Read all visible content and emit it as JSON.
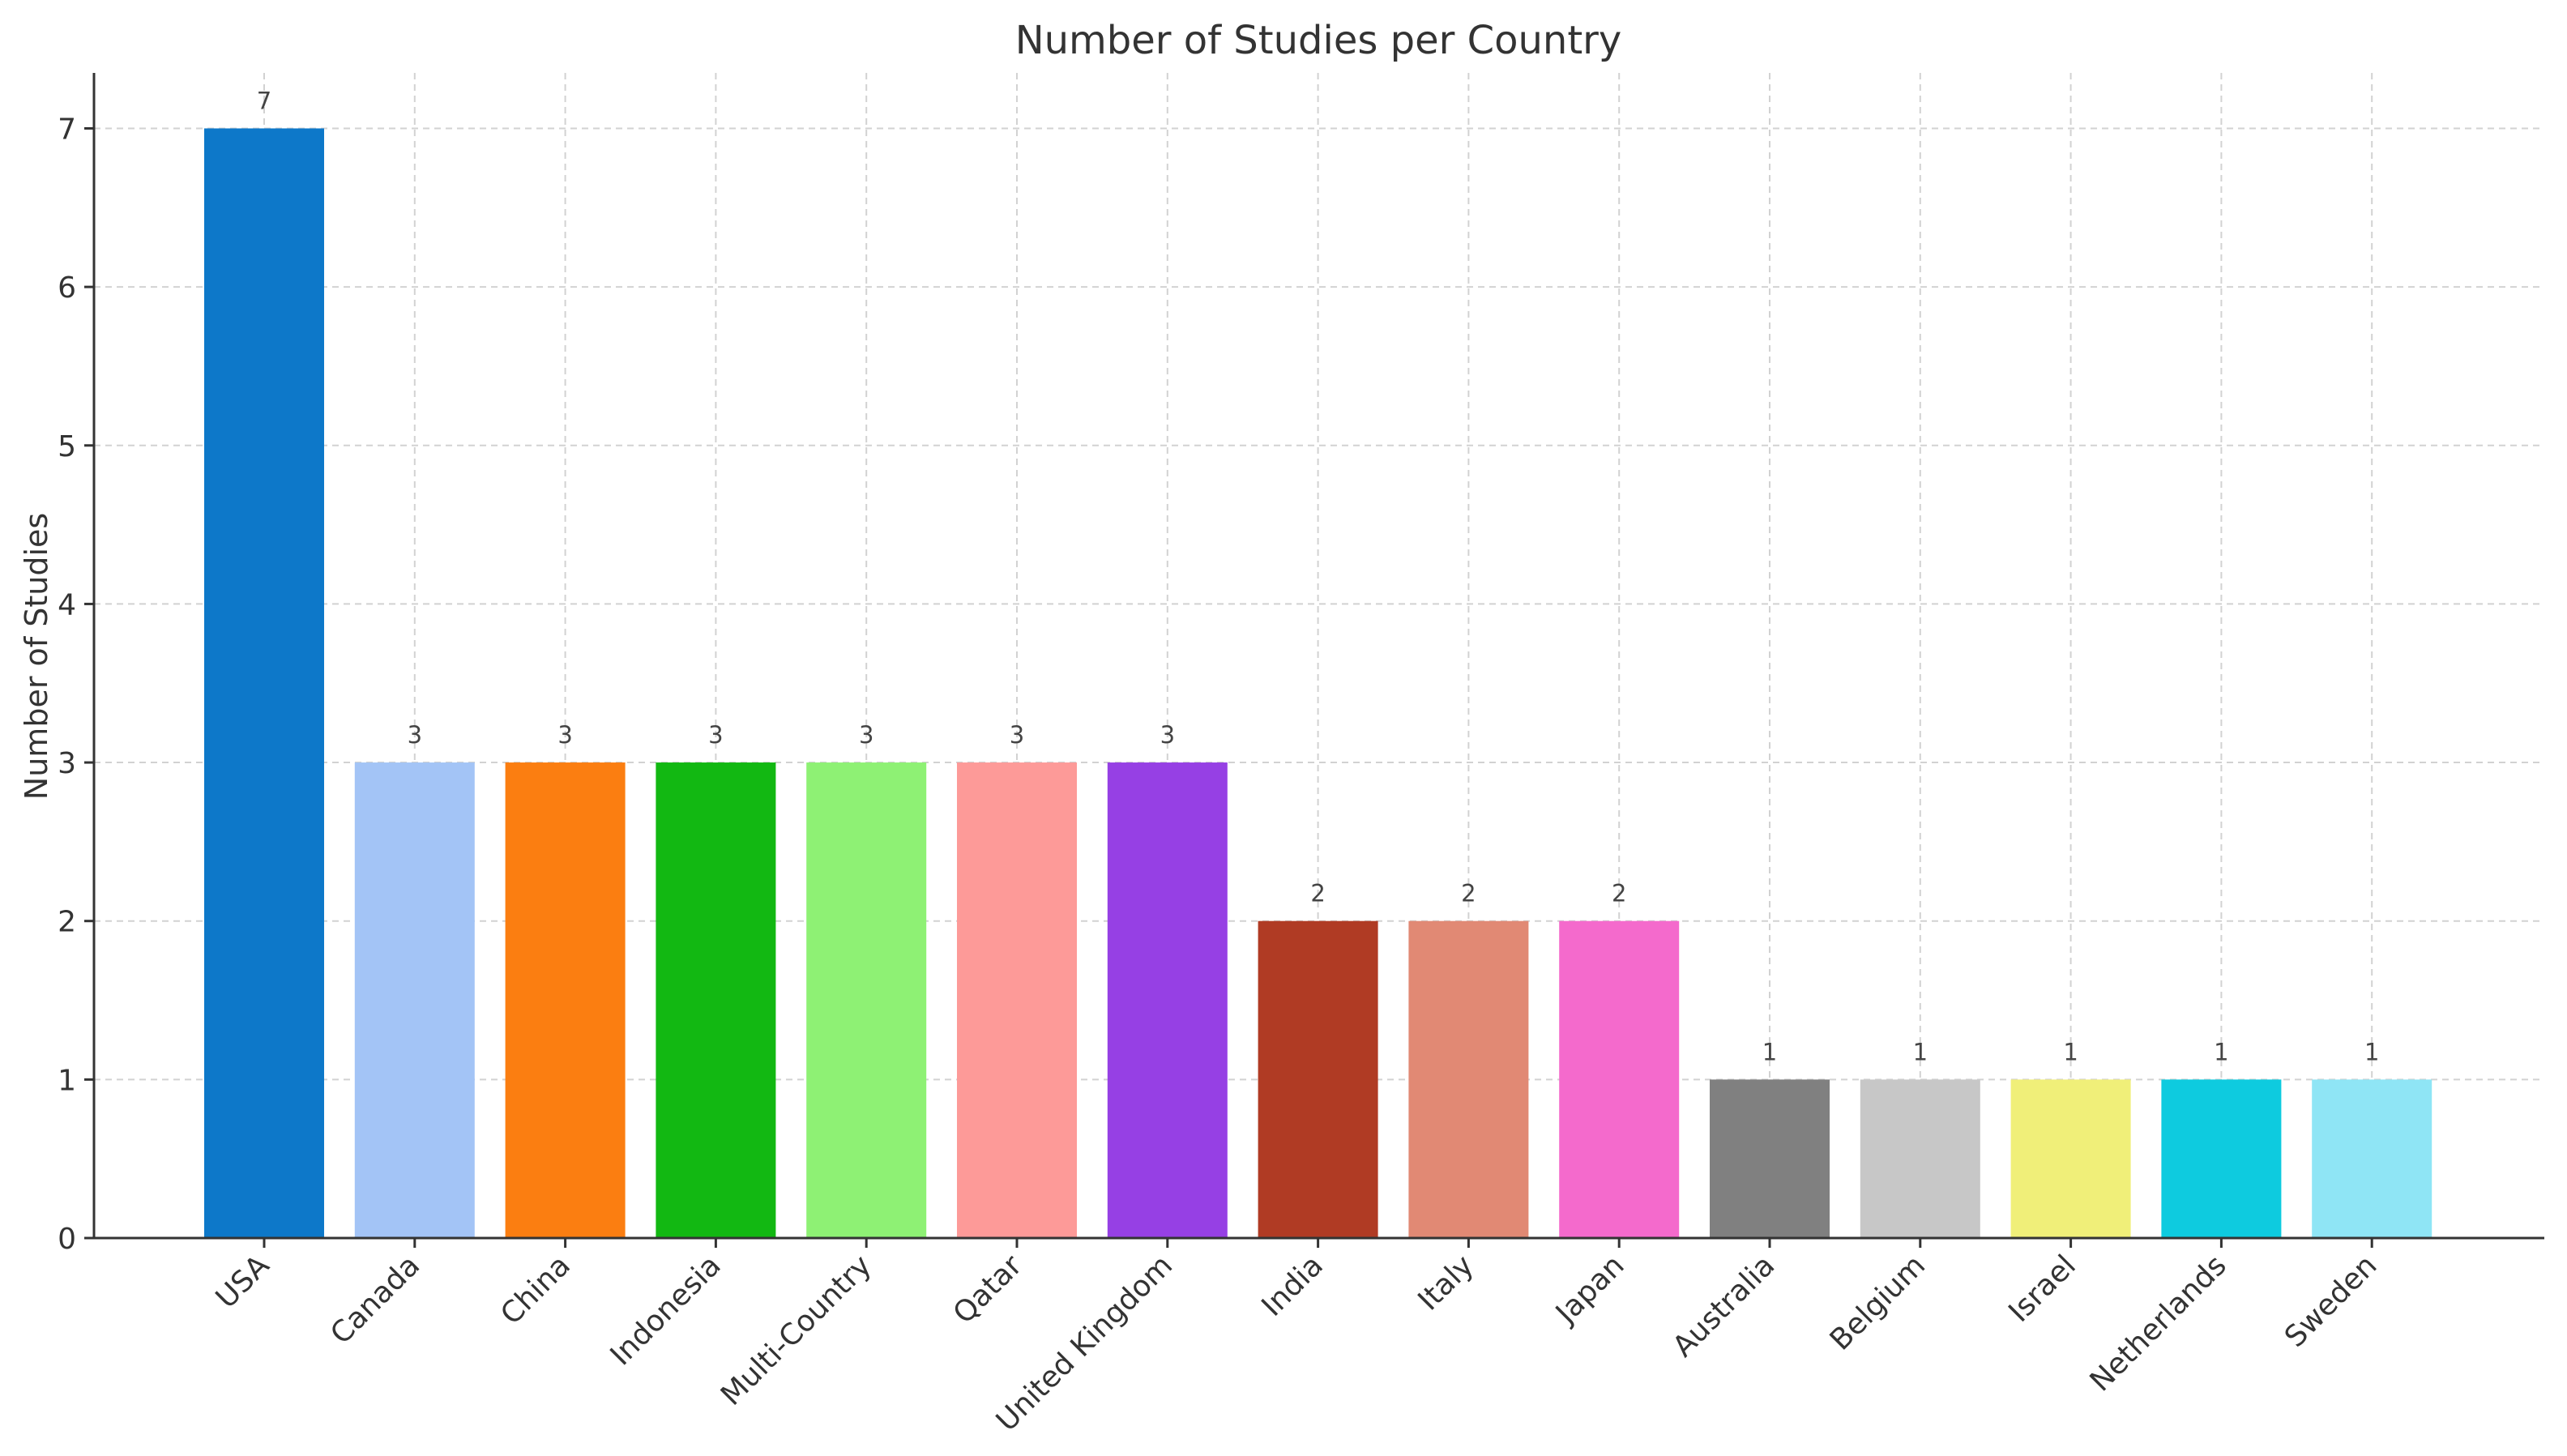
{
  "chart_data": {
    "type": "bar",
    "title": "Number of Studies per Country",
    "xlabel": "",
    "ylabel": "Number of Studies",
    "categories": [
      "USA",
      "Canada",
      "China",
      "Indonesia",
      "Multi-Country",
      "Qatar",
      "United Kingdom",
      "India",
      "Italy",
      "Japan",
      "Australia",
      "Belgium",
      "Israel",
      "Netherlands",
      "Sweden"
    ],
    "values": [
      7,
      3,
      3,
      3,
      3,
      3,
      3,
      2,
      2,
      2,
      1,
      1,
      1,
      1,
      1
    ],
    "data_labels": [
      "7",
      "3",
      "3",
      "3",
      "3",
      "3",
      "3",
      "2",
      "2",
      "2",
      "1",
      "1",
      "1",
      "1",
      "1"
    ],
    "colors": [
      "#0d78c9",
      "#a3c4f6",
      "#fb7e11",
      "#12b812",
      "#8ef174",
      "#fd9a98",
      "#9640e4",
      "#b03b24",
      "#e18974",
      "#f46acc",
      "#808080",
      "#c7c7c7",
      "#f0ef79",
      "#0ecbdf",
      "#8fe5f5"
    ],
    "ylim": [
      0,
      7.35
    ],
    "yticks": [
      "0",
      "1",
      "2",
      "3",
      "4",
      "5",
      "6",
      "7"
    ],
    "grid": true,
    "legend": "none"
  }
}
